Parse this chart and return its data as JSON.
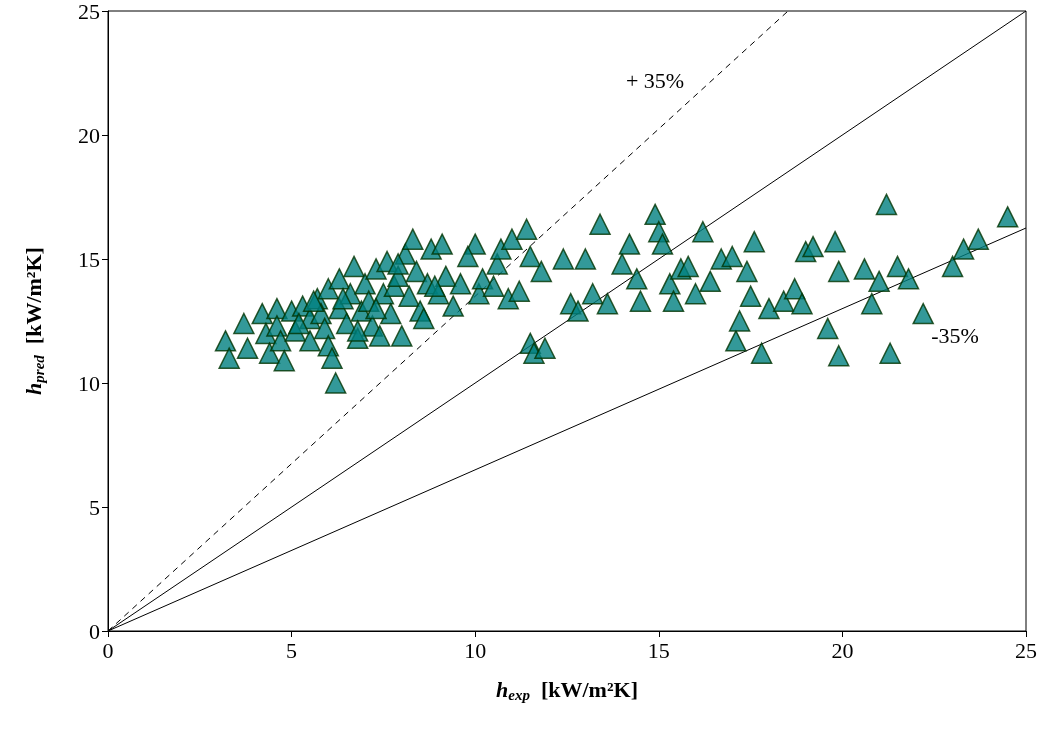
{
  "chart_data": {
    "type": "scatter",
    "xlabel": "h$_{exp}$  [kW/m²K]",
    "ylabel": "h$_{pred}$  [kW/m²K]",
    "xlim": [
      0,
      25
    ],
    "ylim": [
      0,
      25
    ],
    "xticks": [
      0,
      5,
      10,
      15,
      20,
      25
    ],
    "yticks": [
      0,
      5,
      10,
      15,
      20,
      25
    ],
    "grid": false,
    "marker": "triangle",
    "annotations": [
      "+ 35%",
      "-35%"
    ],
    "series": [
      {
        "type": "line",
        "line_style": "dashed",
        "marker": "none",
        "color": "#000000",
        "x": [
          0,
          18.52
        ],
        "values": [
          0,
          25
        ]
      },
      {
        "type": "line",
        "line_style": "solid",
        "marker": "none",
        "color": "#000000",
        "x": [
          0,
          25
        ],
        "values": [
          0,
          25
        ]
      },
      {
        "type": "line",
        "line_style": "solid",
        "marker": "none",
        "color": "#000000",
        "x": [
          0,
          25
        ],
        "values": [
          0,
          16.25
        ]
      },
      {
        "color": "#008080",
        "x": [
          3.2,
          3.3,
          3.7,
          3.8,
          4.2,
          4.3,
          4.4,
          4.6,
          4.6,
          4.7,
          4.8,
          5.0,
          5.1,
          5.3,
          5.5,
          5.5,
          5.7,
          5.8,
          5.9,
          6.0,
          6.0,
          6.1,
          6.2,
          6.3,
          6.3,
          6.5,
          6.6,
          6.7,
          6.8,
          6.9,
          7.0,
          7.1,
          7.2,
          7.3,
          7.4,
          7.5,
          7.6,
          7.7,
          7.8,
          7.9,
          8.0,
          8.1,
          8.2,
          8.3,
          8.4,
          8.5,
          8.6,
          8.7,
          8.8,
          9.0,
          9.1,
          9.2,
          9.4,
          9.6,
          10.0,
          10.1,
          10.2,
          10.5,
          10.6,
          10.7,
          10.9,
          11.0,
          11.2,
          11.4,
          11.5,
          11.5,
          11.6,
          11.8,
          11.9,
          12.4,
          12.6,
          12.8,
          13.0,
          13.2,
          13.4,
          13.6,
          14.0,
          14.2,
          14.4,
          14.5,
          14.9,
          15.0,
          15.1,
          15.3,
          15.4,
          15.6,
          15.8,
          16.0,
          16.2,
          16.4,
          16.7,
          17.0,
          17.1,
          17.2,
          17.4,
          17.5,
          17.6,
          17.8,
          18.0,
          18.4,
          18.7,
          18.9,
          19.0,
          19.2,
          19.6,
          19.8,
          19.9,
          19.9,
          20.6,
          20.8,
          21.0,
          21.2,
          21.3,
          21.5,
          21.8,
          22.2,
          23.0,
          23.3,
          23.7,
          24.5,
          5.2,
          5.6,
          6.4,
          6.8,
          7.3,
          7.9,
          8.9,
          9.8
        ],
        "values": [
          11.7,
          11.0,
          12.4,
          11.4,
          12.8,
          12.0,
          11.2,
          13.0,
          12.3,
          11.7,
          10.9,
          12.9,
          12.1,
          13.1,
          12.6,
          11.7,
          13.4,
          12.8,
          12.2,
          13.8,
          11.5,
          11.0,
          10.0,
          14.2,
          13.0,
          12.4,
          13.6,
          14.7,
          11.8,
          12.9,
          14.0,
          13.3,
          12.3,
          14.6,
          11.9,
          13.6,
          14.9,
          12.8,
          13.9,
          14.3,
          11.9,
          15.2,
          13.5,
          15.8,
          14.5,
          12.9,
          12.6,
          14.0,
          15.4,
          13.6,
          15.6,
          14.3,
          13.1,
          14.0,
          15.6,
          13.6,
          14.2,
          13.9,
          14.8,
          15.4,
          13.4,
          15.8,
          13.7,
          16.2,
          11.6,
          15.1,
          11.2,
          14.5,
          11.4,
          15.0,
          13.2,
          12.9,
          15.0,
          13.6,
          16.4,
          13.2,
          14.8,
          15.6,
          14.2,
          13.3,
          16.8,
          16.1,
          15.6,
          14.0,
          13.3,
          14.6,
          14.7,
          13.6,
          16.1,
          14.1,
          15.0,
          15.1,
          11.7,
          12.5,
          14.5,
          13.5,
          15.7,
          11.2,
          13.0,
          13.3,
          13.8,
          13.2,
          15.3,
          15.5,
          12.2,
          15.7,
          14.5,
          11.1,
          14.6,
          13.2,
          14.1,
          17.2,
          11.2,
          14.7,
          14.2,
          12.8,
          14.7,
          15.4,
          15.8,
          16.7,
          12.4,
          13.3,
          13.4,
          12.1,
          13.0,
          14.8,
          13.9,
          15.1
        ]
      }
    ]
  }
}
